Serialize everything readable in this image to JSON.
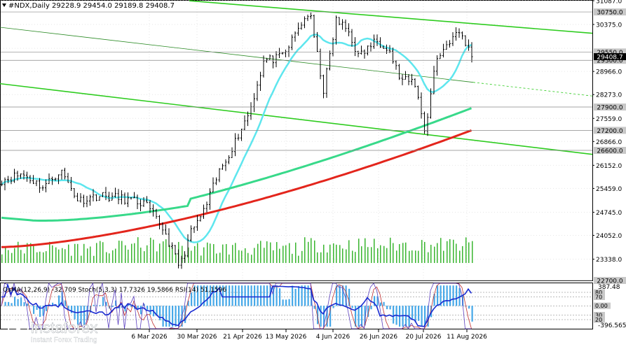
{
  "header": {
    "symbol_icon": "triangle-down-icon",
    "title": "#NDX,Daily",
    "ohlc": "29228.9 29454.0 29189.8 29408.7"
  },
  "indicator_label": "OsMA(12,26,9) -32.709  Stoch(5,3,3) 17.7326 19.5866  RSI(14) 51.1596",
  "logo": {
    "name": "instaforex",
    "tagline": "Instant Forex Trading"
  },
  "chart_data": [
    {
      "type": "candlestick",
      "symbol": "#NDX",
      "timeframe": "Daily",
      "ohlc_last": {
        "open": 29228.9,
        "high": 29454.0,
        "low": 29189.8,
        "close": 29408.7
      },
      "ylim": [
        22700,
        31087
      ],
      "price_ticks": [
        31087.0,
        30375.0,
        29658.0,
        28966.0,
        28273.0,
        27559.0,
        26866.0,
        26152.0,
        25459.0,
        24745.0,
        24052.0,
        23338.0
      ],
      "x_ticks": [
        "6 Mar 2026",
        "30 Mar 2026",
        "21 Apr 2026",
        "13 May 2026",
        "4 Jun 2026",
        "26 Jun 2026",
        "20 Jul 2026",
        "11 Aug 2026"
      ],
      "price_levels": [
        {
          "value": 30750.0,
          "label": "30750.0"
        },
        {
          "value": 29550.0,
          "label": "29550.0"
        },
        {
          "value": 29300.0,
          "label": "29300.0"
        },
        {
          "value": 27900.0,
          "label": "27900.0"
        },
        {
          "value": 27200.0,
          "label": "27200.0"
        },
        {
          "value": 26600.0,
          "label": "26600.0"
        },
        {
          "value": 22700.0,
          "label": "22700.0"
        }
      ],
      "last_price": {
        "value": 29408.7,
        "label": "29408.7"
      },
      "moving_averages": [
        {
          "color": "#5ee6ee"
        },
        {
          "color": "#38d98a"
        },
        {
          "color": "#e3251c"
        }
      ],
      "channel_color": "#2ecc1f",
      "volume_color": "#39b52f"
    },
    {
      "type": "oscillator",
      "indicators": [
        {
          "name": "OsMA(12,26,9)",
          "value": -32.709,
          "color": "#46a8e8"
        },
        {
          "name": "Stoch(5,3,3)",
          "main": 17.7326,
          "signal": 19.5866
        },
        {
          "name": "RSI(14)",
          "value": 51.1596,
          "color": "#1a2bd1"
        }
      ],
      "ylim": [
        -396.565,
        387.48
      ],
      "y_ticks": [
        "387.48",
        "-396.565"
      ],
      "levels": [
        "80",
        "70",
        "50",
        "30",
        "20"
      ],
      "osma_level": "0.00"
    }
  ]
}
